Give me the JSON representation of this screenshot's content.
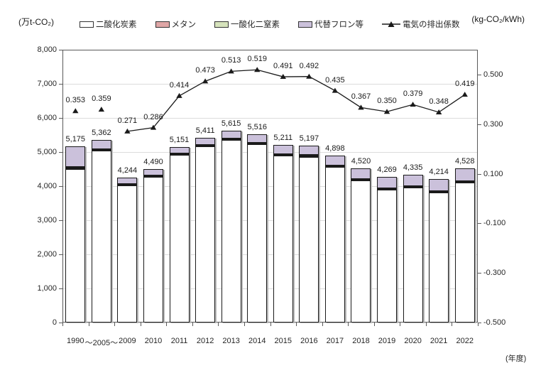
{
  "header": {
    "left_unit": "(万t-CO₂)",
    "right_unit": "(kg-CO₂/kWh)"
  },
  "legend": {
    "items": [
      {
        "label": "二酸化炭素",
        "color_key": "co2"
      },
      {
        "label": "メタン",
        "color_key": "ch4"
      },
      {
        "label": "一酸化二窒素",
        "color_key": "n2o"
      },
      {
        "label": "代替フロン等",
        "color_key": "hfc"
      },
      {
        "label": "電気の排出係数",
        "color_key": "line"
      }
    ]
  },
  "colors": {
    "co2": "#ffffff",
    "ch4": "#dfa6a6",
    "n2o": "#d6e3bc",
    "hfc": "#cbc1db",
    "line": "#1a1a1a",
    "bar_border": "#1a1a1a",
    "grid": "#dcdcdc",
    "axis": "#595959",
    "shadow": "#b9b9b9"
  },
  "chart_data": {
    "type": "bar",
    "subtype": "stacked-bar-with-line-overlay",
    "categories": [
      "1990",
      "～2005～",
      "2009",
      "2010",
      "2011",
      "2012",
      "2013",
      "2014",
      "2015",
      "2016",
      "2017",
      "2018",
      "2019",
      "2020",
      "2021",
      "2022"
    ],
    "bar_totals": [
      5175,
      5362,
      4244,
      4490,
      5151,
      5411,
      5615,
      5516,
      5211,
      5197,
      4898,
      4520,
      4269,
      4335,
      4214,
      4528
    ],
    "bar_total_labels": [
      "5,175",
      "5,362",
      "4,244",
      "4,490",
      "5,151",
      "5,411",
      "5,615",
      "5,516",
      "5,211",
      "5,197",
      "4,898",
      "4,520",
      "4,269",
      "4,335",
      "4,214",
      "4,528"
    ],
    "series": [
      {
        "name": "二酸化炭素",
        "color_key": "co2",
        "values": [
          4510,
          5042,
          4015,
          4251,
          4912,
          5152,
          5336,
          5217,
          4892,
          4873,
          4559,
          4166,
          3900,
          3961,
          3815,
          4109
        ]
      },
      {
        "name": "メタン",
        "color_key": "ch4",
        "values": [
          35,
          25,
          22,
          22,
          22,
          22,
          22,
          22,
          22,
          22,
          22,
          22,
          22,
          22,
          22,
          22
        ]
      },
      {
        "name": "一酸化二窒素",
        "color_key": "n2o",
        "values": [
          30,
          25,
          22,
          22,
          22,
          22,
          22,
          22,
          22,
          22,
          22,
          22,
          22,
          22,
          22,
          22
        ]
      },
      {
        "name": "代替フロン等",
        "color_key": "hfc",
        "values": [
          600,
          270,
          185,
          195,
          195,
          215,
          235,
          255,
          275,
          280,
          295,
          310,
          325,
          330,
          355,
          375
        ]
      }
    ],
    "line_series": {
      "name": "電気の排出係数",
      "values": [
        0.353,
        0.359,
        0.271,
        0.286,
        0.414,
        0.473,
        0.513,
        0.519,
        0.491,
        0.492,
        0.435,
        0.367,
        0.35,
        0.379,
        0.348,
        0.419
      ],
      "labels": [
        "0.353",
        "0.359",
        "0.271",
        "0.286",
        "0.414",
        "0.473",
        "0.513",
        "0.519",
        "0.491",
        "0.492",
        "0.435",
        "0.367",
        "0.350",
        "0.379",
        "0.348",
        "0.419"
      ],
      "connect_from_index": 2
    },
    "left_axis": {
      "min": 0,
      "max": 8000,
      "step": 1000,
      "tick_labels": [
        "0",
        "1,000",
        "2,000",
        "3,000",
        "4,000",
        "5,000",
        "6,000",
        "7,000",
        "8,000"
      ],
      "unit": "(万t-CO₂)"
    },
    "right_axis": {
      "range_min": -0.5,
      "range_max": 0.6,
      "ticks": [
        0.5,
        0.3,
        0.1,
        -0.1,
        -0.3,
        -0.5
      ],
      "tick_labels": [
        "0.500",
        "0.300",
        "0.100",
        "-0.100",
        "-0.300",
        "-0.500"
      ],
      "unit": "(kg-CO₂/kWh)"
    },
    "xlabel": "(年度)",
    "grid": "horizontal-only",
    "legend_position": "top"
  }
}
